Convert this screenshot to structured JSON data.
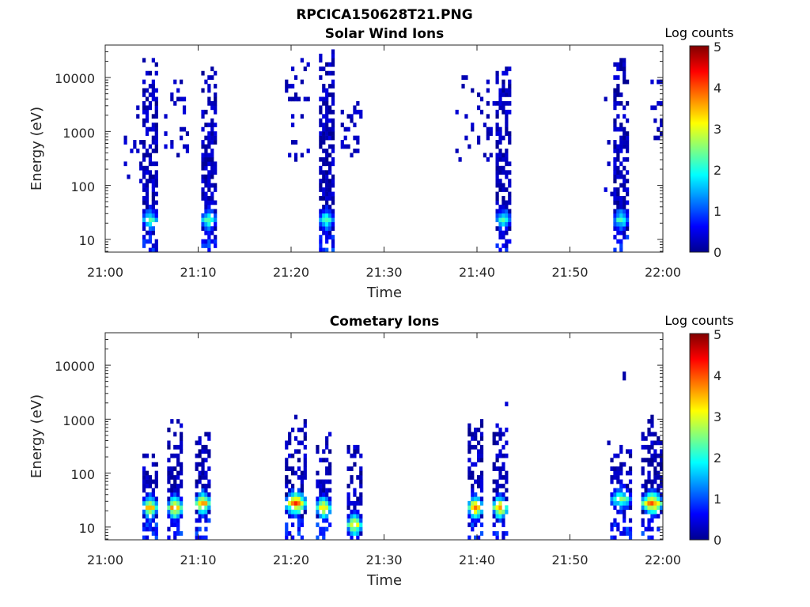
{
  "figure": {
    "title": "RPCICA150628T21.PNG"
  },
  "chart_data": [
    {
      "type": "heatmap",
      "title": "Solar Wind Ions",
      "xlabel": "Time",
      "ylabel": "Energy (eV)",
      "yscale": "log",
      "ylim": [
        5.8,
        40000
      ],
      "xlim": [
        "21:00",
        "22:00"
      ],
      "x_ticks": [
        "21:00",
        "21:10",
        "21:20",
        "21:30",
        "21:40",
        "21:50",
        "22:00"
      ],
      "y_ticks": [
        "10",
        "100",
        "1000",
        "10000"
      ],
      "colorbar": {
        "label": "Log counts",
        "range": [
          0,
          5
        ],
        "ticks": [
          "0",
          "1",
          "2",
          "3",
          "4",
          "5"
        ]
      },
      "bursts": [
        {
          "t": 4.5,
          "w": 1.2,
          "core": 25,
          "peak": 2.2,
          "emax": 20000,
          "tail": 0.75
        },
        {
          "t": 11.0,
          "w": 1.4,
          "core": 25,
          "peak": 2.3,
          "emax": 14000,
          "tail": 0.8
        },
        {
          "t": 23.8,
          "w": 1.0,
          "core": 25,
          "peak": 2.2,
          "emax": 30000,
          "tail": 0.85
        },
        {
          "t": 42.5,
          "w": 1.6,
          "core": 25,
          "peak": 2.1,
          "emax": 16000,
          "tail": 0.75
        },
        {
          "t": 55.4,
          "w": 1.6,
          "core": 25,
          "peak": 2.2,
          "emax": 20000,
          "tail": 0.8
        }
      ],
      "scatter": [
        {
          "t0": 2.0,
          "t1": 3.5,
          "emin": 100,
          "emax": 10000,
          "n": 14
        },
        {
          "t0": 6.3,
          "t1": 8.5,
          "emin": 400,
          "emax": 9000,
          "n": 28
        },
        {
          "t0": 19.2,
          "t1": 21.5,
          "emin": 300,
          "emax": 20000,
          "n": 30
        },
        {
          "t0": 25.2,
          "t1": 27.2,
          "emin": 400,
          "emax": 6000,
          "n": 28
        },
        {
          "t0": 37.5,
          "t1": 41.5,
          "emin": 300,
          "emax": 10000,
          "n": 34
        },
        {
          "t0": 53.8,
          "t1": 54.8,
          "emin": 60,
          "emax": 5000,
          "n": 8
        },
        {
          "t0": 58.5,
          "t1": 60.0,
          "emin": 800,
          "emax": 10000,
          "n": 22
        }
      ]
    },
    {
      "type": "heatmap",
      "title": "Cometary Ions",
      "xlabel": "Time",
      "ylabel": "Energy (eV)",
      "yscale": "log",
      "ylim": [
        5.8,
        40000
      ],
      "xlim": [
        "21:00",
        "22:00"
      ],
      "x_ticks": [
        "21:00",
        "21:10",
        "21:20",
        "21:30",
        "21:40",
        "21:50",
        "22:00"
      ],
      "y_ticks": [
        "10",
        "100",
        "1000",
        "10000"
      ],
      "colorbar": {
        "label": "Log counts",
        "range": [
          0,
          5
        ],
        "ticks": [
          "0",
          "1",
          "2",
          "3",
          "4",
          "5"
        ]
      },
      "bursts": [
        {
          "t": 4.5,
          "w": 1.4,
          "core": 25,
          "peak": 3.6,
          "emax": 200,
          "tail": 0.65
        },
        {
          "t": 7.3,
          "w": 1.6,
          "core": 25,
          "peak": 3.8,
          "emax": 900,
          "tail": 0.65
        },
        {
          "t": 10.3,
          "w": 1.6,
          "core": 28,
          "peak": 3.7,
          "emax": 600,
          "tail": 0.65
        },
        {
          "t": 20.2,
          "w": 2.2,
          "core": 27,
          "peak": 4.0,
          "emax": 1200,
          "tail": 0.65
        },
        {
          "t": 23.4,
          "w": 1.2,
          "core": 25,
          "peak": 3.3,
          "emax": 500,
          "tail": 0.6
        },
        {
          "t": 26.5,
          "w": 1.2,
          "core": 12,
          "peak": 3.3,
          "emax": 400,
          "tail": 0.6
        },
        {
          "t": 39.5,
          "w": 1.6,
          "core": 22,
          "peak": 3.8,
          "emax": 1000,
          "tail": 0.65
        },
        {
          "t": 42.2,
          "w": 1.4,
          "core": 22,
          "peak": 3.6,
          "emax": 700,
          "tail": 0.6
        },
        {
          "t": 55.4,
          "w": 1.8,
          "core": 32,
          "peak": 2.4,
          "emax": 300,
          "tail": 0.55
        },
        {
          "t": 58.6,
          "w": 1.8,
          "core": 30,
          "peak": 3.8,
          "emax": 1100,
          "tail": 0.65
        }
      ],
      "scatter": [
        {
          "t0": 42.8,
          "t1": 43.0,
          "emin": 2000,
          "emax": 3000,
          "n": 1
        },
        {
          "t0": 55.5,
          "t1": 55.9,
          "emin": 5000,
          "emax": 8500,
          "n": 2
        },
        {
          "t0": 53.9,
          "t1": 54.1,
          "emin": 350,
          "emax": 450,
          "n": 1
        }
      ]
    }
  ]
}
